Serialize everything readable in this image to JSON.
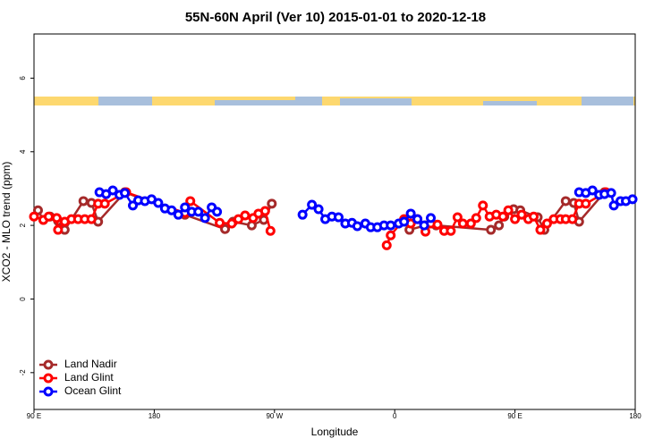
{
  "chart_data": {
    "type": "line",
    "title": "55N-60N April (Ver 10)   2015-01-01 to 2020-12-18",
    "xlabel": "Longitude",
    "ylabel": "XCO2 - MLO trend (ppm)",
    "xlim": [
      90,
      540
    ],
    "ylim": [
      -3,
      7.2
    ],
    "xticks": [
      {
        "value": 90,
        "label": "90 E"
      },
      180,
      {
        "value": 270,
        "label": "90 W"
      },
      {
        "value": 360,
        "label": "0"
      },
      {
        "value": 450,
        "label": "90 E"
      },
      {
        "value": 540,
        "label": "180"
      }
    ],
    "yticks": [
      -2,
      0,
      2,
      4,
      6
    ],
    "legend": "bottom-left",
    "series": [
      {
        "name": "Land Nadir",
        "color": "#a52a2a",
        "x": [
          93,
          97,
          102,
          108,
          113,
          127,
          133,
          138,
          158,
          203,
          233,
          239,
          253,
          262,
          268,
          null,
          371,
          383,
          391,
          432,
          438,
          442,
          449,
          454,
          467,
          472,
          488,
          494,
          498,
          517
        ],
        "values": [
          2.41,
          2.15,
          2.24,
          2.12,
          1.88,
          2.66,
          2.61,
          2.1,
          2.9,
          2.29,
          1.9,
          2.1,
          2.0,
          2.15,
          2.59,
          null,
          1.88,
          2.0,
          2.0,
          1.88,
          2.0,
          2.24,
          2.44,
          2.41,
          2.22,
          1.88,
          2.66,
          2.61,
          2.1,
          2.9
        ]
      },
      {
        "name": "Land Glint",
        "color": "#ff0000",
        "x": [
          90,
          97,
          101,
          107,
          108,
          113,
          118,
          123,
          128,
          133,
          138,
          143,
          159,
          203,
          207,
          229,
          238,
          243,
          248,
          254,
          258,
          263,
          267,
          null,
          354,
          357,
          367,
          372,
          377,
          383,
          387,
          392,
          397,
          402,
          407,
          411,
          417,
          421,
          426,
          431,
          436,
          441,
          445,
          450,
          455,
          460,
          464,
          469,
          474,
          479,
          484,
          488,
          493,
          498,
          503,
          518
        ],
        "values": [
          2.24,
          2.15,
          2.24,
          2.2,
          1.88,
          2.1,
          2.17,
          2.17,
          2.17,
          2.17,
          2.59,
          2.59,
          2.9,
          2.34,
          2.66,
          2.07,
          2.05,
          2.17,
          2.27,
          2.2,
          2.32,
          2.39,
          1.85,
          null,
          1.46,
          1.73,
          2.17,
          2.05,
          2.17,
          1.83,
          2.05,
          2.02,
          1.85,
          1.85,
          2.22,
          2.05,
          2.05,
          2.2,
          2.54,
          2.24,
          2.29,
          2.24,
          2.41,
          2.17,
          2.29,
          2.17,
          2.24,
          1.88,
          2.05,
          2.17,
          2.17,
          2.17,
          2.17,
          2.59,
          2.59,
          2.9
        ]
      },
      {
        "name": "Ocean Glint",
        "color": "#0000ff",
        "x": [
          139,
          144,
          149,
          154,
          158,
          164,
          168,
          173,
          178,
          183,
          188,
          193,
          198,
          203,
          208,
          213,
          218,
          223,
          227,
          null,
          291,
          298,
          303,
          308,
          313,
          318,
          323,
          328,
          332,
          338,
          342,
          347,
          352,
          357,
          363,
          367,
          372,
          377,
          382,
          387,
          null,
          498,
          503,
          508,
          513,
          517,
          522,
          524,
          529,
          533,
          538
        ],
        "values": [
          2.9,
          2.85,
          2.95,
          2.83,
          2.88,
          2.54,
          2.68,
          2.66,
          2.71,
          2.61,
          2.46,
          2.41,
          2.29,
          2.49,
          2.37,
          2.37,
          2.2,
          2.49,
          2.37,
          null,
          2.29,
          2.56,
          2.44,
          2.17,
          2.24,
          2.22,
          2.05,
          2.07,
          1.98,
          2.05,
          1.95,
          1.95,
          2.0,
          2.0,
          2.05,
          2.1,
          2.32,
          2.17,
          2.0,
          2.2,
          null,
          2.9,
          2.88,
          2.95,
          2.83,
          2.85,
          2.88,
          2.54,
          2.66,
          2.66,
          2.71
        ]
      }
    ]
  }
}
